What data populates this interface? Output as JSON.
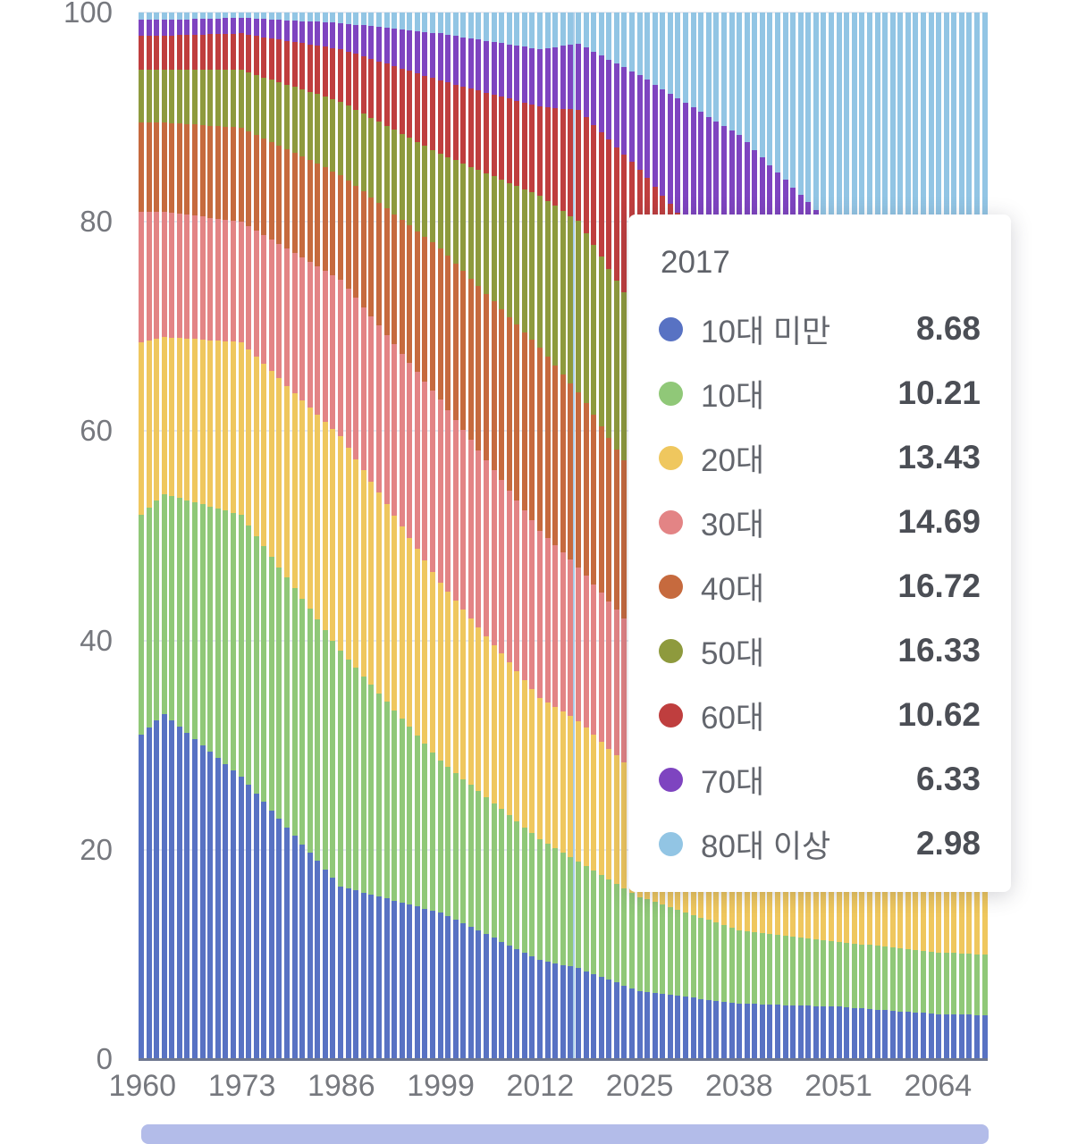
{
  "chart_data": {
    "type": "bar",
    "variant": "stacked-percentage-column",
    "title": "",
    "xlabel": "",
    "ylabel": "",
    "x_start": 1960,
    "x_end": 2070,
    "x_tick_labels": [
      "1960",
      "1973",
      "1986",
      "1999",
      "2012",
      "2025",
      "2038",
      "2051",
      "2064"
    ],
    "y_ticks": [
      0,
      20,
      40,
      60,
      80,
      100
    ],
    "ylim": [
      0,
      100
    ],
    "grid": true,
    "hover_year": 2017,
    "keyframe_years": [
      1960,
      1963,
      1973,
      1986,
      1999,
      2012,
      2017,
      2025,
      2038,
      2051,
      2064,
      2070
    ],
    "series": [
      {
        "name": "10대 미만",
        "color": "#5872c3",
        "values": [
          31.0,
          33.0,
          27.0,
          16.5,
          14.0,
          9.5,
          8.68,
          6.5,
          5.3,
          5.0,
          4.3,
          4.2
        ]
      },
      {
        "name": "10대",
        "color": "#90c878",
        "values": [
          21.0,
          21.0,
          25.0,
          22.5,
          14.5,
          11.5,
          10.21,
          9.0,
          7.0,
          6.2,
          5.9,
          5.8
        ]
      },
      {
        "name": "20대",
        "color": "#efc75e",
        "values": [
          16.5,
          15.0,
          16.5,
          20.5,
          17.0,
          13.5,
          13.43,
          11.5,
          10.0,
          8.8,
          8.3,
          8.2
        ]
      },
      {
        "name": "30대",
        "color": "#e38485",
        "values": [
          12.5,
          12.0,
          11.5,
          15.0,
          17.5,
          16.0,
          14.69,
          13.5,
          12.0,
          10.5,
          9.5,
          9.2
        ]
      },
      {
        "name": "40대",
        "color": "#c66a3e",
        "values": [
          8.5,
          8.5,
          9.0,
          10.0,
          14.5,
          17.5,
          16.72,
          14.5,
          12.5,
          11.0,
          10.0,
          9.8
        ]
      },
      {
        "name": "50대",
        "color": "#8e9a3d",
        "values": [
          5.0,
          5.0,
          5.5,
          7.0,
          9.0,
          14.5,
          16.33,
          16.0,
          12.5,
          11.5,
          10.5,
          10.3
        ]
      },
      {
        "name": "60대",
        "color": "#bf3e3e",
        "values": [
          3.3,
          3.3,
          3.5,
          5.0,
          7.0,
          8.5,
          10.62,
          14.0,
          15.0,
          12.0,
          11.5,
          11.0
        ]
      },
      {
        "name": "70대",
        "color": "#7e44c0",
        "values": [
          1.5,
          1.5,
          1.5,
          2.5,
          4.5,
          5.5,
          6.33,
          9.0,
          14.0,
          14.0,
          13.5,
          13.0
        ]
      },
      {
        "name": "80대 이상",
        "color": "#92c5e4",
        "values": [
          0.7,
          0.7,
          0.5,
          1.0,
          2.0,
          3.5,
          2.98,
          6.0,
          11.7,
          21.0,
          26.5,
          28.5
        ]
      }
    ]
  },
  "tooltip": {
    "title": "2017",
    "rows": [
      {
        "label": "10대 미만",
        "value": "8.68",
        "color": "#5872c3"
      },
      {
        "label": "10대",
        "value": "10.21",
        "color": "#90c878"
      },
      {
        "label": "20대",
        "value": "13.43",
        "color": "#efc75e"
      },
      {
        "label": "30대",
        "value": "14.69",
        "color": "#e38485"
      },
      {
        "label": "40대",
        "value": "16.72",
        "color": "#c66a3e"
      },
      {
        "label": "50대",
        "value": "16.33",
        "color": "#8e9a3d"
      },
      {
        "label": "60대",
        "value": "10.62",
        "color": "#bf3e3e"
      },
      {
        "label": "70대",
        "value": "6.33",
        "color": "#7e44c0"
      },
      {
        "label": "80대 이상",
        "value": "2.98",
        "color": "#92c5e4"
      }
    ]
  },
  "ui": {
    "axis_text_color": "#76787e",
    "gridline_color": "#e7eaf2",
    "crosshair_color": "#a9cde9",
    "slider_color": "#b3bce9"
  }
}
